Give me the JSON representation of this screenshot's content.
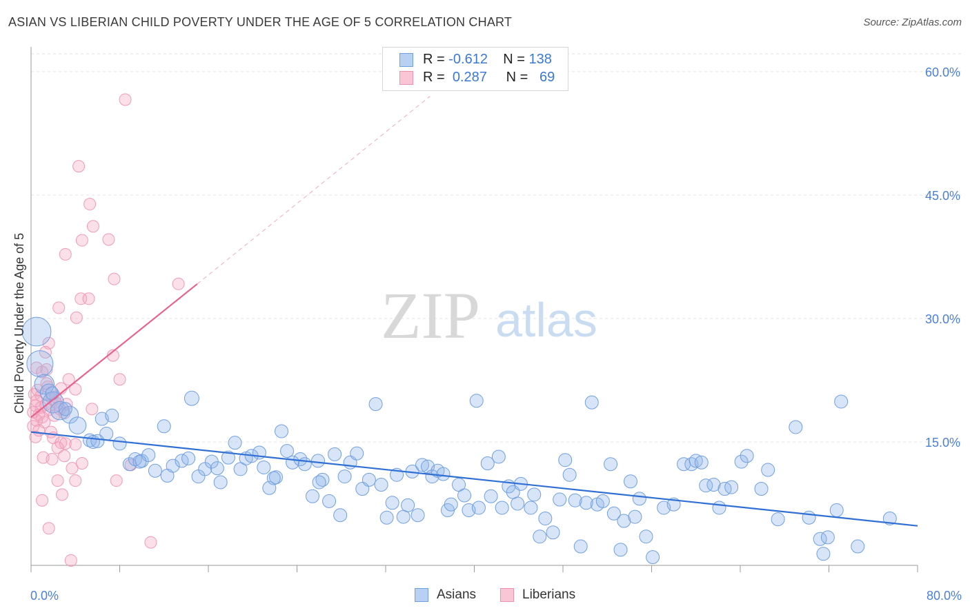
{
  "title": "ASIAN VS LIBERIAN CHILD POVERTY UNDER THE AGE OF 5 CORRELATION CHART",
  "source": "Source: ZipAtlas.com",
  "watermark": {
    "zip": "ZIP",
    "atlas": "atlas"
  },
  "legend": {
    "asians": {
      "r_label": "R =",
      "r_value": "-0.612",
      "n_label": "N =",
      "n_value": "138"
    },
    "liberians": {
      "r_label": "R =",
      "r_value": "0.287",
      "n_label": "N =",
      "n_value": "69"
    }
  },
  "bottom_legend": {
    "asians": "Asians",
    "liberians": "Liberians"
  },
  "chart_data": {
    "type": "scatter",
    "ylabel": "Child Poverty Under the Age of 5",
    "xlabel": "",
    "xlim": [
      0,
      80
    ],
    "ylim": [
      0,
      62
    ],
    "x_tick_labels": [
      "0.0%",
      "80.0%"
    ],
    "y_ticks": [
      15,
      30,
      45,
      60
    ],
    "y_tick_labels": [
      "15.0%",
      "30.0%",
      "45.0%",
      "60.0%"
    ],
    "grid": true,
    "colors": {
      "asians": "#8fb5ea",
      "asians_line": "#2f6fd6",
      "liberians": "#f4a7bf",
      "liberians_line": "#e8628e"
    },
    "series": [
      {
        "name": "Asians",
        "trend": {
          "x0": 0,
          "y0": 16.2,
          "x1": 80,
          "y1": 4.8
        },
        "points": [
          [
            0.5,
            28.4,
            2.2
          ],
          [
            0.8,
            24.5,
            2.0
          ],
          [
            1.2,
            22.0,
            1.5
          ],
          [
            1.6,
            21.0,
            1.3
          ],
          [
            2.0,
            19.8,
            1.6
          ],
          [
            2.6,
            18.8,
            1.4
          ],
          [
            3.5,
            18.3,
            1.3
          ],
          [
            4.2,
            17.0,
            1.3
          ],
          [
            5.3,
            15.2,
            1.0
          ],
          [
            5.6,
            15.0,
            1.0
          ],
          [
            6.4,
            17.8,
            1.0
          ],
          [
            6.8,
            16.0,
            1.0
          ],
          [
            7.3,
            18.2,
            1.0
          ],
          [
            8.0,
            14.8,
            1.0
          ],
          [
            8.9,
            12.3,
            1.0
          ],
          [
            9.4,
            12.9,
            1.0
          ],
          [
            10.0,
            12.7,
            1.0
          ],
          [
            10.6,
            13.4,
            1.0
          ],
          [
            11.2,
            11.5,
            1.0
          ],
          [
            12.0,
            16.9,
            1.0
          ],
          [
            12.3,
            10.9,
            1.0
          ],
          [
            12.8,
            12.1,
            1.0
          ],
          [
            13.6,
            12.7,
            1.0
          ],
          [
            14.2,
            13.0,
            1.0
          ],
          [
            14.5,
            20.3,
            1.1
          ],
          [
            15.1,
            10.8,
            1.0
          ],
          [
            15.7,
            11.7,
            1.0
          ],
          [
            16.3,
            12.6,
            1.0
          ],
          [
            17.1,
            10.1,
            1.0
          ],
          [
            17.8,
            13.1,
            1.0
          ],
          [
            18.4,
            14.9,
            1.0
          ],
          [
            18.9,
            11.7,
            1.0
          ],
          [
            19.4,
            13.0,
            1.0
          ],
          [
            19.9,
            13.3,
            1.0
          ],
          [
            20.6,
            13.7,
            1.0
          ],
          [
            21.0,
            11.9,
            1.0
          ],
          [
            21.5,
            9.4,
            1.0
          ],
          [
            22.1,
            10.7,
            1.0
          ],
          [
            22.6,
            16.3,
            1.0
          ],
          [
            23.1,
            13.9,
            1.0
          ],
          [
            23.6,
            12.5,
            1.0
          ],
          [
            24.3,
            12.9,
            1.0
          ],
          [
            24.7,
            12.3,
            1.0
          ],
          [
            25.4,
            8.4,
            1.0
          ],
          [
            25.9,
            12.7,
            1.0
          ],
          [
            26.3,
            10.4,
            1.0
          ],
          [
            26.9,
            7.8,
            1.0
          ],
          [
            27.4,
            13.5,
            1.0
          ],
          [
            27.9,
            6.1,
            1.0
          ],
          [
            28.3,
            10.8,
            1.0
          ],
          [
            28.8,
            12.5,
            1.0
          ],
          [
            29.4,
            13.6,
            1.0
          ],
          [
            29.9,
            9.3,
            1.0
          ],
          [
            30.5,
            10.4,
            1.0
          ],
          [
            31.1,
            19.6,
            1.0
          ],
          [
            31.6,
            9.8,
            1.0
          ],
          [
            32.1,
            5.8,
            1.0
          ],
          [
            32.6,
            7.6,
            1.0
          ],
          [
            33.0,
            11.0,
            1.0
          ],
          [
            33.6,
            5.9,
            1.0
          ],
          [
            34.0,
            7.3,
            1.0
          ],
          [
            34.4,
            11.4,
            1.0
          ],
          [
            34.9,
            6.1,
            1.0
          ],
          [
            35.3,
            12.2,
            1.0
          ],
          [
            35.8,
            12.0,
            1.0
          ],
          [
            36.2,
            10.8,
            1.0
          ],
          [
            36.7,
            11.5,
            1.0
          ],
          [
            37.2,
            11.1,
            1.0
          ],
          [
            37.6,
            6.7,
            1.0
          ],
          [
            37.9,
            7.4,
            1.0
          ],
          [
            38.6,
            9.8,
            1.0
          ],
          [
            39.1,
            8.5,
            1.0
          ],
          [
            39.5,
            6.7,
            1.0
          ],
          [
            40.2,
            20.0,
            1.0
          ],
          [
            40.4,
            7.0,
            1.0
          ],
          [
            41.2,
            12.4,
            1.0
          ],
          [
            41.5,
            8.4,
            1.0
          ],
          [
            42.2,
            13.2,
            1.0
          ],
          [
            42.5,
            7.0,
            1.0
          ],
          [
            43.1,
            9.6,
            1.0
          ],
          [
            43.5,
            8.9,
            1.0
          ],
          [
            43.9,
            7.5,
            1.0
          ],
          [
            44.2,
            9.9,
            1.0
          ],
          [
            45.1,
            7.0,
            1.0
          ],
          [
            45.4,
            8.6,
            1.0
          ],
          [
            45.9,
            3.5,
            1.0
          ],
          [
            46.4,
            5.7,
            1.0
          ],
          [
            47.1,
            4.0,
            1.0
          ],
          [
            47.7,
            8.0,
            1.0
          ],
          [
            48.2,
            12.8,
            1.0
          ],
          [
            48.6,
            11.0,
            1.0
          ],
          [
            49.1,
            7.9,
            1.0
          ],
          [
            49.6,
            2.3,
            1.0
          ],
          [
            50.1,
            7.6,
            1.0
          ],
          [
            50.6,
            19.8,
            1.0
          ],
          [
            51.1,
            7.4,
            1.0
          ],
          [
            51.6,
            7.8,
            1.0
          ],
          [
            52.3,
            12.3,
            1.0
          ],
          [
            52.6,
            6.3,
            1.0
          ],
          [
            53.2,
            1.9,
            1.0
          ],
          [
            53.5,
            5.4,
            1.0
          ],
          [
            54.1,
            10.2,
            1.0
          ],
          [
            54.5,
            5.9,
            1.0
          ],
          [
            54.9,
            8.1,
            1.0
          ],
          [
            55.5,
            3.5,
            1.0
          ],
          [
            56.1,
            1.0,
            1.0
          ],
          [
            57.1,
            7.0,
            1.0
          ],
          [
            58.0,
            7.4,
            1.0
          ],
          [
            58.9,
            12.3,
            1.0
          ],
          [
            59.6,
            12.3,
            1.0
          ],
          [
            60.0,
            12.7,
            1.0
          ],
          [
            60.5,
            12.5,
            1.0
          ],
          [
            60.9,
            9.7,
            1.0
          ],
          [
            61.6,
            9.8,
            1.0
          ],
          [
            62.1,
            7.0,
            1.0
          ],
          [
            62.6,
            9.3,
            1.0
          ],
          [
            63.2,
            9.5,
            1.0
          ],
          [
            64.1,
            12.6,
            1.0
          ],
          [
            64.6,
            13.3,
            1.0
          ],
          [
            65.9,
            9.3,
            1.0
          ],
          [
            66.5,
            11.6,
            1.0
          ],
          [
            67.4,
            5.6,
            1.0
          ],
          [
            69.0,
            16.8,
            1.0
          ],
          [
            70.2,
            5.8,
            1.0
          ],
          [
            71.2,
            3.2,
            1.0
          ],
          [
            71.5,
            1.4,
            1.0
          ],
          [
            71.9,
            3.4,
            1.0
          ],
          [
            72.7,
            6.7,
            1.0
          ],
          [
            73.1,
            19.9,
            1.0
          ],
          [
            74.6,
            2.3,
            1.0
          ],
          [
            77.5,
            5.7,
            1.0
          ],
          [
            3.1,
            19.0,
            1.0
          ],
          [
            1.9,
            20.9,
            1.0
          ],
          [
            6.0,
            15.1,
            1.0
          ],
          [
            9.8,
            12.6,
            1.0
          ],
          [
            16.8,
            11.8,
            1.0
          ],
          [
            21.9,
            10.6,
            1.0
          ],
          [
            26.0,
            10.1,
            1.0
          ]
        ]
      },
      {
        "name": "Liberians",
        "trend": {
          "x0": 0,
          "y0": 18.0,
          "x1": 15,
          "y1": 34.2
        },
        "trend_dashed": {
          "x0": 15,
          "y0": 34.2,
          "x1": 36,
          "y1": 57.0
        },
        "points": [
          [
            8.5,
            56.6
          ],
          [
            4.3,
            48.5
          ],
          [
            5.3,
            43.9
          ],
          [
            5.6,
            41.2
          ],
          [
            4.6,
            39.5
          ],
          [
            7.0,
            39.6
          ],
          [
            3.1,
            37.8
          ],
          [
            7.5,
            34.8
          ],
          [
            13.3,
            34.2
          ],
          [
            4.5,
            32.4
          ],
          [
            5.2,
            32.4
          ],
          [
            2.5,
            31.3
          ],
          [
            4.1,
            30.1
          ],
          [
            1.6,
            27.0
          ],
          [
            1.3,
            25.9
          ],
          [
            7.4,
            25.5
          ],
          [
            0.5,
            24.0
          ],
          [
            1.4,
            23.8
          ],
          [
            1.0,
            23.5
          ],
          [
            3.4,
            22.6
          ],
          [
            8.0,
            22.6
          ],
          [
            1.5,
            21.7
          ],
          [
            2.7,
            21.5
          ],
          [
            4.0,
            21.4
          ],
          [
            0.3,
            20.8
          ],
          [
            0.9,
            20.6
          ],
          [
            1.9,
            20.2
          ],
          [
            0.5,
            20.0
          ],
          [
            2.2,
            19.8
          ],
          [
            3.2,
            19.6
          ],
          [
            1.3,
            19.5
          ],
          [
            0.4,
            19.4
          ],
          [
            0.9,
            19.2
          ],
          [
            2.6,
            19.0
          ],
          [
            5.5,
            19.0
          ],
          [
            1.6,
            18.9
          ],
          [
            0.2,
            18.6
          ],
          [
            3.0,
            18.5
          ],
          [
            0.7,
            18.3
          ],
          [
            2.1,
            18.2
          ],
          [
            1.0,
            18.0
          ],
          [
            0.5,
            17.6
          ],
          [
            1.2,
            17.4
          ],
          [
            0.2,
            16.9
          ],
          [
            0.7,
            16.4
          ],
          [
            1.8,
            16.2
          ],
          [
            0.4,
            15.6
          ],
          [
            2.0,
            15.5
          ],
          [
            2.7,
            14.9
          ],
          [
            3.1,
            14.8
          ],
          [
            4.0,
            14.7
          ],
          [
            2.4,
            14.3
          ],
          [
            3.0,
            13.3
          ],
          [
            1.1,
            13.1
          ],
          [
            1.9,
            12.9
          ],
          [
            4.6,
            12.4
          ],
          [
            9.0,
            12.2
          ],
          [
            3.7,
            11.8
          ],
          [
            2.4,
            10.3
          ],
          [
            4.0,
            10.3
          ],
          [
            7.7,
            10.3
          ],
          [
            2.8,
            8.6
          ],
          [
            1.0,
            7.9
          ],
          [
            1.6,
            4.5
          ],
          [
            10.8,
            2.8
          ],
          [
            3.6,
            0.6
          ],
          [
            2.2,
            20.5
          ],
          [
            1.4,
            22.1
          ],
          [
            0.6,
            21.3
          ]
        ]
      }
    ]
  }
}
